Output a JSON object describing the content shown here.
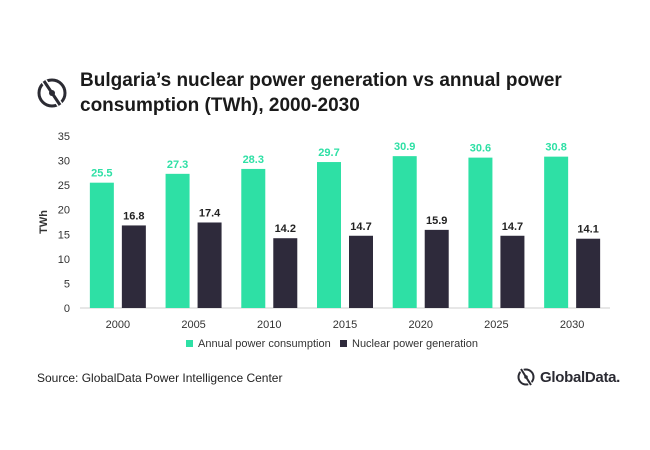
{
  "header": {
    "title_line1": "Bulgaria’s nuclear power generation vs annual power",
    "title_line2": "consumption (TWh), 2000-2030"
  },
  "footer": {
    "source": "Source: GlobalData Power Intelligence Center",
    "logo_text": "GlobalData."
  },
  "colors": {
    "consumption": "#2ee0a5",
    "generation": "#2e2a3b",
    "consumption_label": "#2ee0a5",
    "generation_label": "#222222"
  },
  "chart_data": {
    "type": "bar",
    "title": "Bulgaria’s nuclear power generation vs annual power consumption (TWh), 2000-2030",
    "categories": [
      "2000",
      "2005",
      "2010",
      "2015",
      "2020",
      "2025",
      "2030"
    ],
    "series": [
      {
        "name": "Annual power consumption",
        "values": [
          25.5,
          27.3,
          28.3,
          29.7,
          30.9,
          30.6,
          30.8
        ]
      },
      {
        "name": "Nuclear power generation",
        "values": [
          16.8,
          17.4,
          14.2,
          14.7,
          15.9,
          14.7,
          14.1
        ]
      }
    ],
    "xlabel": "",
    "ylabel": "TWh",
    "ylim": [
      0,
      35
    ],
    "yticks": [
      0,
      5,
      10,
      15,
      20,
      25,
      30,
      35
    ],
    "grid": false,
    "legend": "bottom-center"
  }
}
